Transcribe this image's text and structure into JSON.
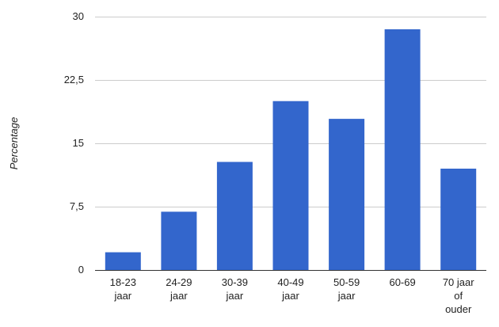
{
  "chart_data": {
    "type": "bar",
    "title": "",
    "xlabel": "",
    "ylabel": "Percentage",
    "categories": [
      [
        "18-23",
        "jaar"
      ],
      [
        "24-29",
        "jaar"
      ],
      [
        "30-39",
        "jaar"
      ],
      [
        "40-49",
        "jaar"
      ],
      [
        "50-59",
        "jaar"
      ],
      [
        "60-69"
      ],
      [
        "70 jaar",
        "of",
        "ouder"
      ]
    ],
    "values": [
      2.1,
      6.9,
      12.8,
      20.0,
      17.9,
      28.5,
      12.0
    ],
    "ylim": [
      0,
      30
    ],
    "yticks": [
      {
        "value": 0,
        "label": "0"
      },
      {
        "value": 7.5,
        "label": "7,5"
      },
      {
        "value": 15,
        "label": "15"
      },
      {
        "value": 22.5,
        "label": "22,5"
      },
      {
        "value": 30,
        "label": "30"
      }
    ],
    "grid": true,
    "legend": "none",
    "bar_color": "#3366cc"
  }
}
